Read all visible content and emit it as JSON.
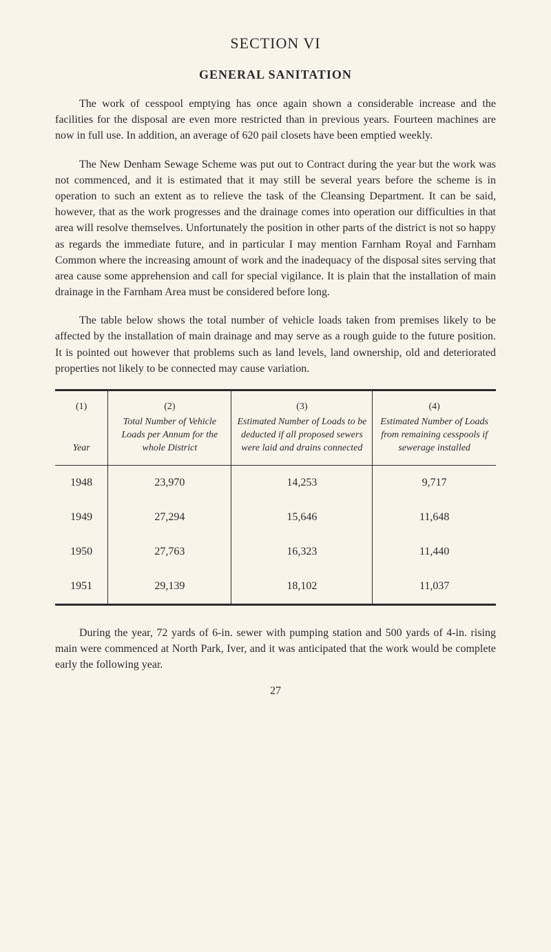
{
  "section_title": "SECTION VI",
  "subsection_title": "GENERAL SANITATION",
  "paragraphs": {
    "p1": "The work of cesspool emptying has once again shown a considerable increase and the facilities for the disposal are even more restricted than in previous years. Fourteen machines are now in full use. In addition, an average of 620 pail closets have been emptied weekly.",
    "p2": "The New Denham Sewage Scheme was put out to Contract during the year but the work was not commenced, and it is estimated that it may still be several years before the scheme is in operation to such an extent as to relieve the task of the Cleansing Department. It can be said, however, that as the work progresses and the drainage comes into operation our difficulties in that area will resolve themselves. Unfortunately the position in other parts of the district is not so happy as regards the immediate future, and in particular I may mention Farnham Royal and Farnham Common where the increasing amount of work and the inadequacy of the disposal sites serving that area cause some apprehension and call for special vigilance. It is plain that the installation of main drainage in the Farnham Area must be considered before long.",
    "p3": "The table below shows the total number of vehicle loads taken from premises likely to be affected by the installation of main drainage and may serve as a rough guide to the future position. It is pointed out however that problems such as land levels, land ownership, old and deteriorated properties not likely to be connected may cause variation.",
    "p4": "During the year, 72 yards of 6-in. sewer with pumping station and 500 yards of 4-in. rising main were commenced at North Park, Iver, and it was anticipated that the work would be complete early the following year."
  },
  "table": {
    "headers": {
      "col1_num": "(1)",
      "col1_label": "Year",
      "col2_num": "(2)",
      "col2_label": "Total Number of Vehicle Loads per Annum for the whole District",
      "col3_num": "(3)",
      "col3_label": "Estimated Number of Loads to be deducted if all proposed sewers were laid and drains connected",
      "col4_num": "(4)",
      "col4_label": "Estimated Number of Loads from remaining cesspools if sewerage installed"
    },
    "rows": [
      {
        "year": "1948",
        "total": "23,970",
        "deducted": "14,253",
        "remaining": "9,717"
      },
      {
        "year": "1949",
        "total": "27,294",
        "deducted": "15,646",
        "remaining": "11,648"
      },
      {
        "year": "1950",
        "total": "27,763",
        "deducted": "16,323",
        "remaining": "11,440"
      },
      {
        "year": "1951",
        "total": "29,139",
        "deducted": "18,102",
        "remaining": "11,037"
      }
    ]
  },
  "page_number": "27",
  "colors": {
    "background": "#f7f4ea",
    "text": "#2a2a2a",
    "border": "#2a2a2a"
  }
}
